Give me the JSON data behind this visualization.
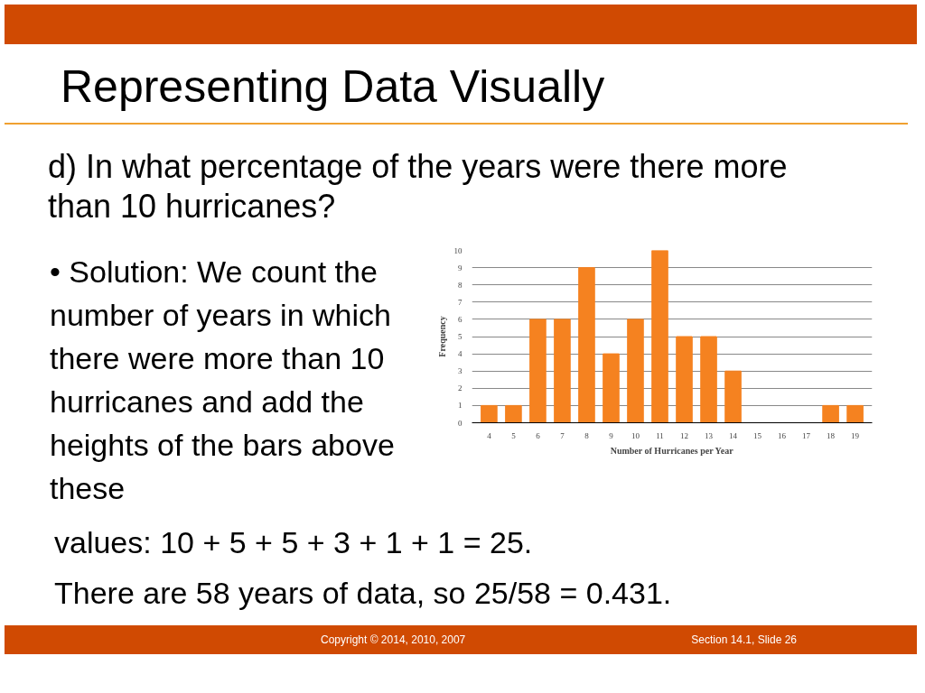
{
  "chart_data": {
    "type": "bar",
    "title": "Representing Data Visually",
    "categories": [
      "4",
      "5",
      "6",
      "7",
      "8",
      "9",
      "10",
      "11",
      "12",
      "13",
      "14",
      "15",
      "16",
      "17",
      "18",
      "19"
    ],
    "values": [
      1,
      1,
      6,
      6,
      9,
      4,
      6,
      10,
      5,
      5,
      3,
      0,
      0,
      0,
      1,
      1
    ],
    "color": "#f58220",
    "ylim": [
      0,
      10
    ],
    "yticks": [
      0,
      1,
      2,
      3,
      4,
      5,
      6,
      7,
      8,
      9,
      10
    ],
    "grid": "y",
    "xlabel": "Number of Hurricanes per Year",
    "ylabel": "Frequency",
    "annotations": [
      "d) In what percentage of the years were there more than 10 hurricanes?",
      "• Solution: We count the number of years in which there were more than 10 hurricanes and add the heights of the bars above these",
      "values: 10 + 5 + 5 + 3 + 1 + 1 = 25.",
      "There are 58 years of data, so 25/58 = 0.431.",
      "Copyright © 2014, 2010, 2007",
      "Section 14.1, Slide 26"
    ]
  }
}
